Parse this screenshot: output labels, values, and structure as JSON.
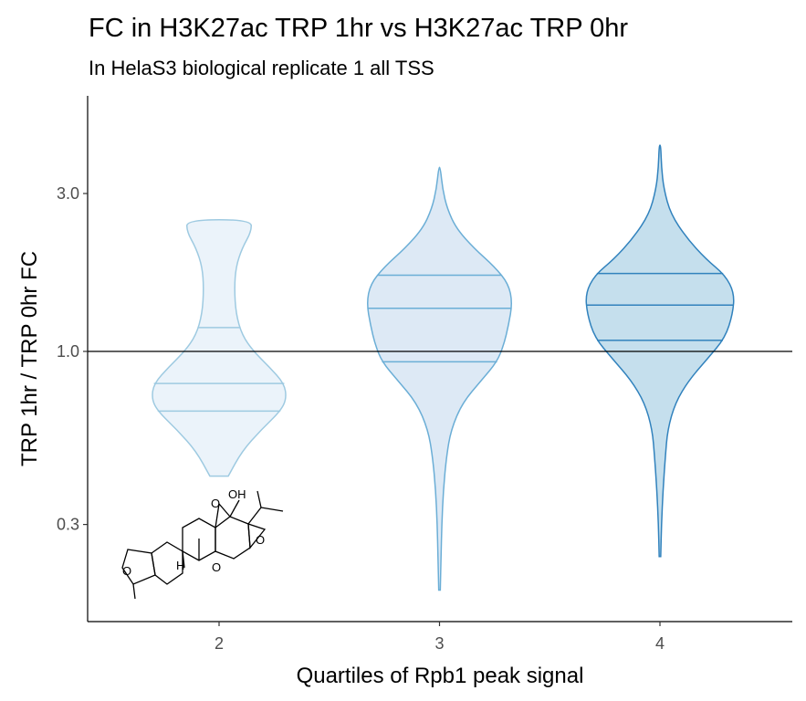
{
  "chart_data": {
    "type": "violin",
    "title": "FC in H3K27ac TRP 1hr vs H3K27ac TRP 0hr",
    "subtitle": "In HelaS3 biological replicate 1 all TSS",
    "xlabel": "Quartiles of Rpb1 peak signal",
    "ylabel": "TRP 1hr / TRP 0hr FC",
    "y_scale": "log10",
    "y_ticks": [
      0.3,
      1.0,
      3.0
    ],
    "y_tick_labels": [
      "0.3",
      "1.0",
      "3.0"
    ],
    "ylim": [
      0.2,
      5.0
    ],
    "reference_line": 1.0,
    "categories": [
      "2",
      "3",
      "4"
    ],
    "violins": [
      {
        "name": "2",
        "fill": "#deebf7",
        "stroke": "#9ecae1",
        "quantiles": [
          0.66,
          0.8,
          1.18
        ],
        "min": 0.42,
        "max": 2.5,
        "profile": [
          [
            0.42,
            0.12
          ],
          [
            0.5,
            0.3
          ],
          [
            0.58,
            0.55
          ],
          [
            0.66,
            0.8
          ],
          [
            0.72,
            0.88
          ],
          [
            0.8,
            0.85
          ],
          [
            0.9,
            0.65
          ],
          [
            1.0,
            0.45
          ],
          [
            1.12,
            0.3
          ],
          [
            1.3,
            0.22
          ],
          [
            1.55,
            0.2
          ],
          [
            1.8,
            0.22
          ],
          [
            2.05,
            0.3
          ],
          [
            2.3,
            0.42
          ],
          [
            2.5,
            0.42
          ]
        ]
      },
      {
        "name": "3",
        "fill": "#c6dbef",
        "stroke": "#6baed6",
        "quantiles": [
          0.93,
          1.35,
          1.7
        ],
        "min": 0.19,
        "max": 3.6,
        "profile": [
          [
            0.19,
            0.01
          ],
          [
            0.24,
            0.02
          ],
          [
            0.3,
            0.03
          ],
          [
            0.38,
            0.05
          ],
          [
            0.48,
            0.09
          ],
          [
            0.58,
            0.15
          ],
          [
            0.7,
            0.3
          ],
          [
            0.82,
            0.55
          ],
          [
            0.93,
            0.75
          ],
          [
            1.05,
            0.84
          ],
          [
            1.2,
            0.9
          ],
          [
            1.4,
            0.95
          ],
          [
            1.6,
            0.9
          ],
          [
            1.8,
            0.72
          ],
          [
            2.05,
            0.45
          ],
          [
            2.35,
            0.22
          ],
          [
            2.7,
            0.1
          ],
          [
            3.1,
            0.04
          ],
          [
            3.6,
            0.01
          ]
        ]
      },
      {
        "name": "4",
        "fill": "#9ecae1",
        "stroke": "#3182bd",
        "quantiles": [
          1.08,
          1.38,
          1.72
        ],
        "min": 0.24,
        "max": 4.2,
        "profile": [
          [
            0.24,
            0.01
          ],
          [
            0.3,
            0.02
          ],
          [
            0.38,
            0.04
          ],
          [
            0.48,
            0.07
          ],
          [
            0.58,
            0.1
          ],
          [
            0.7,
            0.2
          ],
          [
            0.82,
            0.38
          ],
          [
            0.95,
            0.62
          ],
          [
            1.1,
            0.85
          ],
          [
            1.3,
            0.95
          ],
          [
            1.5,
            0.97
          ],
          [
            1.7,
            0.85
          ],
          [
            1.9,
            0.6
          ],
          [
            2.2,
            0.35
          ],
          [
            2.6,
            0.14
          ],
          [
            3.1,
            0.05
          ],
          [
            3.6,
            0.02
          ],
          [
            4.2,
            0.01
          ]
        ]
      }
    ]
  },
  "molecule": {
    "label_oh": "OH",
    "label_h": "H",
    "label_o_list": [
      "O",
      "O",
      "O",
      "O"
    ]
  }
}
